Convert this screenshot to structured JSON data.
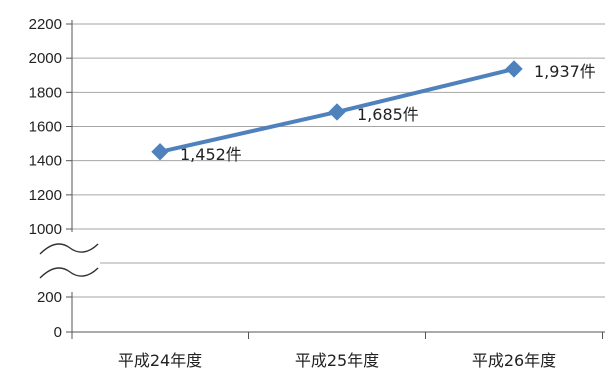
{
  "chart_data": {
    "type": "line",
    "categories": [
      "平成24年度",
      "平成25年度",
      "平成26年度"
    ],
    "series": [
      {
        "values": [
          1452,
          1685,
          1937
        ],
        "color": "#4f81bd"
      }
    ],
    "data_labels": [
      "1,452件",
      "1,685件",
      "1,937件"
    ],
    "y_ticks": [
      "2200",
      "2000",
      "1800",
      "1600",
      "1400",
      "1200",
      "1000",
      "200",
      "0"
    ],
    "y_upper_range": [
      1000,
      2200
    ],
    "y_lower_range": [
      0,
      200
    ],
    "y_axis_break": true,
    "grid": "horizontal",
    "marker": "diamond",
    "gridline_color": "#a6a6a6"
  }
}
